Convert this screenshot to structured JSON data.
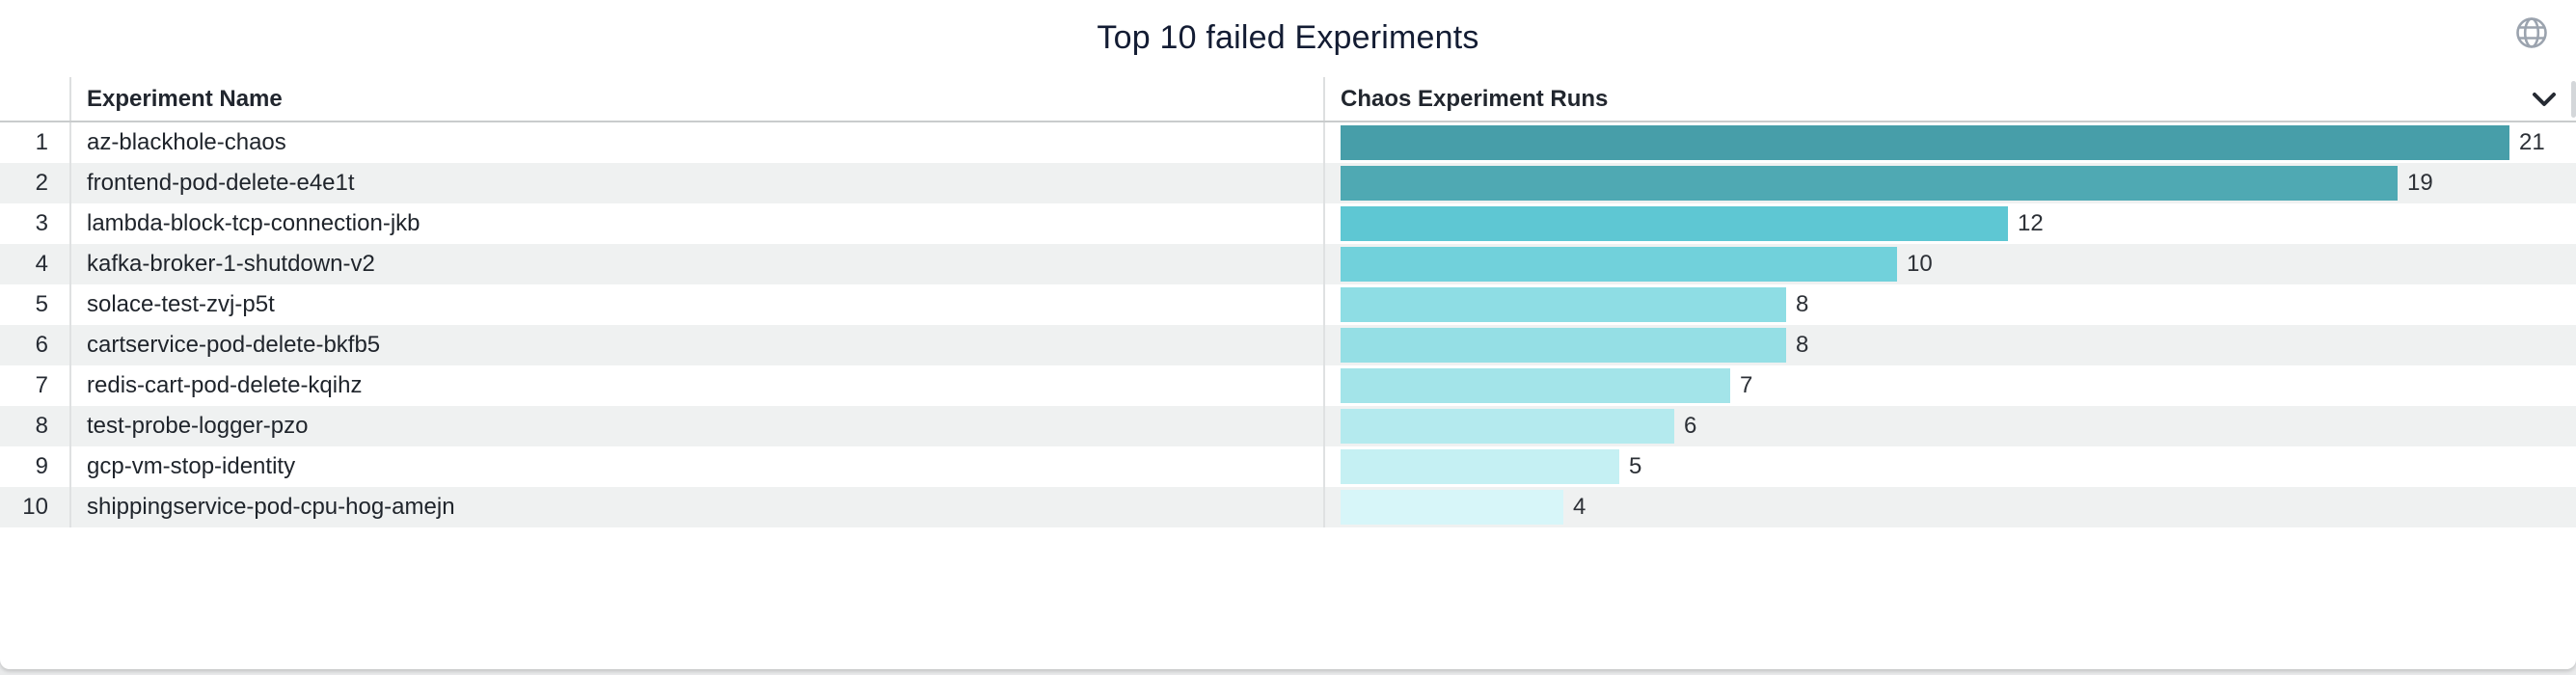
{
  "panel": {
    "title": "Top 10 failed Experiments"
  },
  "header": {
    "experiment_col": "Experiment Name",
    "runs_col": "Chaos Experiment Runs"
  },
  "icons": {
    "top_right": "globe-icon",
    "runs_header": "chevron-down-icon"
  },
  "chart_data": {
    "type": "bar",
    "orientation": "horizontal",
    "title": "Top 10 failed Experiments",
    "columns": [
      "Experiment Name",
      "Chaos Experiment Runs"
    ],
    "ranks": [
      1,
      2,
      3,
      4,
      5,
      6,
      7,
      8,
      9,
      10
    ],
    "categories": [
      "az-blackhole-chaos",
      "frontend-pod-delete-e4e1t",
      "lambda-block-tcp-connection-jkb",
      "kafka-broker-1-shutdown-v2",
      "solace-test-zvj-p5t",
      "cartservice-pod-delete-bkfb5",
      "redis-cart-pod-delete-kqihz",
      "test-probe-logger-pzo",
      "gcp-vm-stop-identity",
      "shippingservice-pod-cpu-hog-amejn"
    ],
    "values": [
      21,
      19,
      12,
      10,
      8,
      8,
      7,
      6,
      5,
      4
    ],
    "xlim": [
      0,
      21
    ],
    "value_labels": true,
    "legend": "none",
    "grid": false,
    "bar_colors": [
      "#479ea9",
      "#4fa9b3",
      "#5ec7d3",
      "#71d1db",
      "#8edde4",
      "#95dfe5",
      "#a3e4e9",
      "#b4eaee",
      "#c5f0f3",
      "#d7f6f9"
    ]
  },
  "colors": {
    "title_text": "#131c33",
    "header_text": "#21262e",
    "row_text": "#1f242b",
    "stripe_row": "#eff1f1",
    "column_divider": "#dddfe0",
    "header_border": "#c9cccd",
    "page_background": "#e9eaeb",
    "globe_icon": "#9ba3ae",
    "accent_dark_teal": "#479ea9",
    "accent_light_cyan": "#d7f6f9"
  }
}
